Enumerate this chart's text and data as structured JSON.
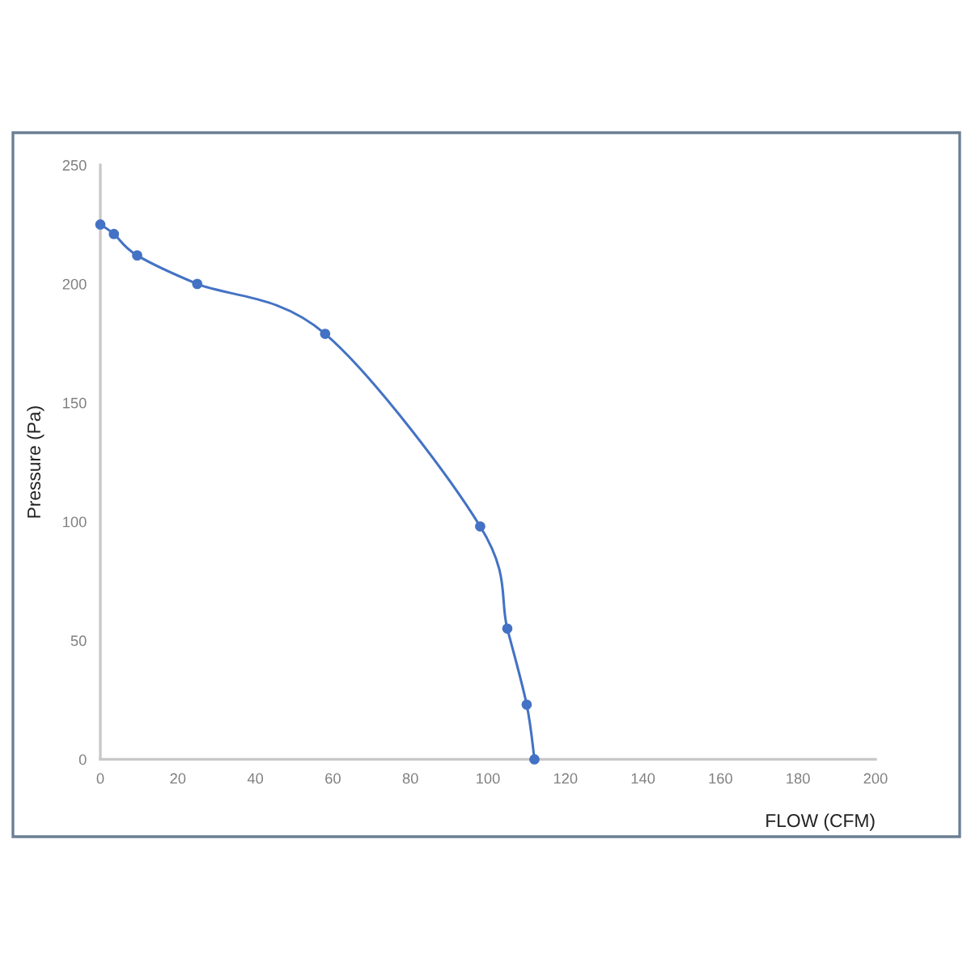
{
  "chart_data": {
    "type": "line",
    "xlabel": "FLOW (CFM)",
    "ylabel": "Pressure (Pa)",
    "series": [
      {
        "color": "#4472c4",
        "x": [
          0,
          3.5,
          9.5,
          25,
          58,
          98,
          105,
          110,
          112
        ],
        "values": [
          225,
          221,
          212,
          200,
          179,
          98,
          55,
          23,
          0
        ]
      }
    ],
    "xlim": [
      0,
      200
    ],
    "xticks": [
      0,
      20,
      40,
      60,
      80,
      100,
      120,
      140,
      160,
      180,
      200
    ],
    "ylim": [
      0,
      250
    ],
    "yticks": [
      0,
      50,
      100,
      150,
      200,
      250
    ],
    "marker": "circle",
    "grid": false
  }
}
